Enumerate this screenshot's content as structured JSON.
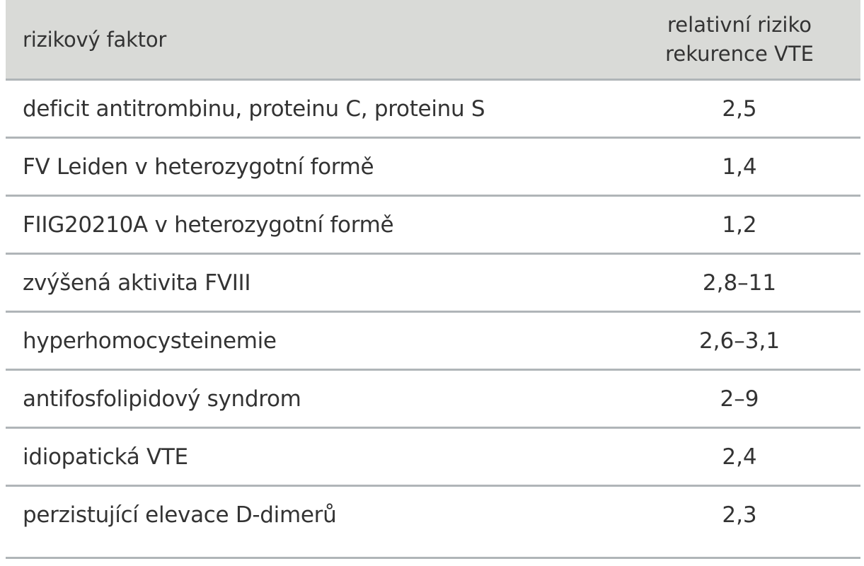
{
  "table": {
    "header": {
      "factor": "rizikový faktor",
      "risk_line1": "relativní riziko",
      "risk_line2": "rekurence VTE"
    },
    "rows": [
      {
        "factor": "deficit antitrombinu, proteinu C, proteinu S",
        "risk": "2,5"
      },
      {
        "factor": "FV Leiden v heterozygotní formě",
        "risk": "1,4"
      },
      {
        "factor": "FIIG20210A v heterozygotní formě",
        "risk": "1,2"
      },
      {
        "factor": "zvýšená aktivita FVIII",
        "risk": "2,8–11"
      },
      {
        "factor": "hyperhomocysteinemie",
        "risk": "2,6–3,1"
      },
      {
        "factor": "antifosfolipidový syndrom",
        "risk": "2–9"
      },
      {
        "factor": "idiopatická VTE",
        "risk": "2,4"
      },
      {
        "factor": "perzistující elevace D-dimerů",
        "risk": "2,3"
      }
    ]
  }
}
